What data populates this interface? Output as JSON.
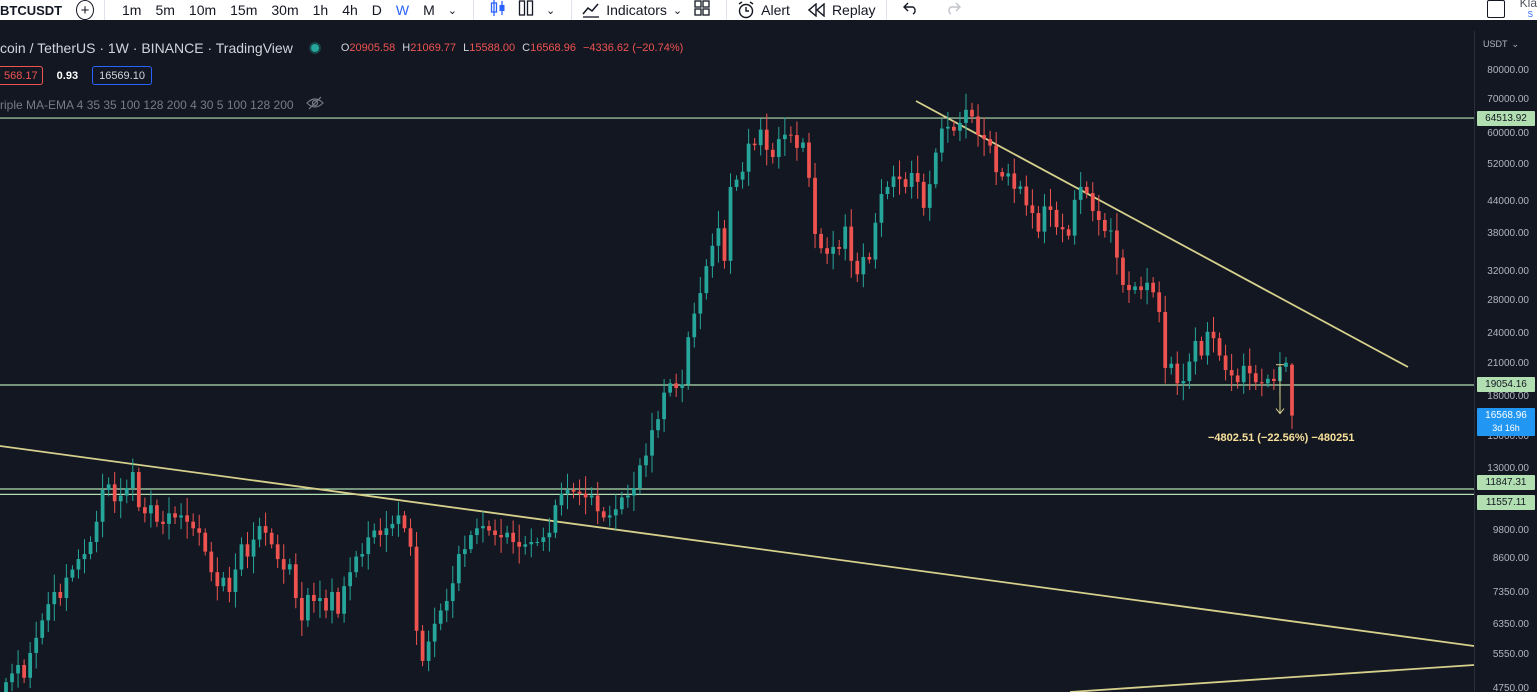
{
  "toolbar": {
    "symbol": "BTCUSDT",
    "add_symbol": "+",
    "timeframes": [
      "1m",
      "5m",
      "10m",
      "15m",
      "30m",
      "1h",
      "4h",
      "D",
      "W",
      "M"
    ],
    "active_timeframe": "W",
    "indicators_label": "Indicators",
    "alert_label": "Alert",
    "replay_label": "Replay",
    "corner_text": "Kla",
    "corner_sub": "S"
  },
  "legend": {
    "title": "coin / TetherUS · 1W · BINANCE · TradingView",
    "open_label": "O",
    "open": "20905.58",
    "high_label": "H",
    "high": "21069.77",
    "low_label": "L",
    "low": "15588.00",
    "close_label": "C",
    "close": "16568.96",
    "change": "−4336.62 (−20.74%)",
    "bid": "568.17",
    "spread": "0.93",
    "ask": "16569.10",
    "indicator": "riple MA-EMA 4 35 35 100 128 200 4 30 5 100 128 200"
  },
  "axis": {
    "currency": "USDT",
    "ticks": [
      "80000.00",
      "70000.00",
      "60000.00",
      "52000.00",
      "44000.00",
      "38000.00",
      "32000.00",
      "28000.00",
      "24000.00",
      "21000.00",
      "18000.00",
      "15000.00",
      "13000.00",
      "9800.00",
      "8600.00",
      "7350.00",
      "6350.00",
      "5550.00",
      "4750.00"
    ],
    "price_labels": [
      "64513.92",
      "19054.16",
      "11847.31",
      "11557.11"
    ],
    "current_price": "16568.96",
    "countdown": "3d 16h"
  },
  "measure": "−4802.51 (−22.56%) −480251",
  "colors": {
    "background": "#131722",
    "up": "#26a69a",
    "down": "#ef5350",
    "trendline": "#d6d08c",
    "hline": "#b2dfb2",
    "accent": "#2962ff"
  },
  "chart_data": {
    "type": "candlestick",
    "symbol": "BTCUSDT",
    "interval": "1W",
    "exchange": "BINANCE",
    "y_scale": "log",
    "ylim": [
      4750,
      80000
    ],
    "horizontal_levels": [
      64513.92,
      19054.16,
      11847.31,
      11557.11
    ],
    "last": {
      "open": 20905.58,
      "high": 21069.77,
      "low": 15588.0,
      "close": 16568.96
    },
    "closes": [
      4900,
      5100,
      5300,
      5000,
      5600,
      6000,
      6500,
      7000,
      7400,
      7200,
      7900,
      8200,
      8600,
      8800,
      9300,
      10200,
      11800,
      12100,
      11200,
      11500,
      11900,
      12800,
      10900,
      10600,
      11000,
      10200,
      10100,
      10600,
      10400,
      10500,
      10200,
      9900,
      9700,
      8900,
      8100,
      7600,
      7900,
      7400,
      8200,
      9200,
      8700,
      9400,
      10000,
      9700,
      9200,
      8600,
      8200,
      8400,
      7200,
      6500,
      7300,
      7100,
      7200,
      6800,
      7400,
      6700,
      7600,
      8100,
      8700,
      8800,
      9500,
      9800,
      9600,
      9900,
      10100,
      10500,
      9900,
      9100,
      6200,
      5400,
      5900,
      6400,
      6800,
      7100,
      7700,
      8800,
      9000,
      9600,
      9900,
      10000,
      9800,
      9600,
      9500,
      9700,
      9300,
      9100,
      9200,
      9300,
      9300,
      9500,
      9700,
      11000,
      11600,
      11800,
      11700,
      11600,
      11400,
      11500,
      10700,
      10400,
      10500,
      10800,
      11400,
      11500,
      11900,
      13200,
      13800,
      15500,
      16300,
      18400,
      19200,
      18800,
      19100,
      23700,
      26400,
      29000,
      32800,
      36000,
      39000,
      33600,
      47100,
      48700,
      50500,
      57400,
      57000,
      61200,
      55800,
      54000,
      58600,
      59800,
      59700,
      56300,
      57700,
      49100,
      38000,
      35600,
      34700,
      35800,
      35500,
      39300,
      33600,
      31600,
      34200,
      33800,
      40000,
      45600,
      47100,
      49400,
      48800,
      47100,
      50200,
      48200,
      42800,
      47700,
      55100,
      61500,
      62000,
      60900,
      63100,
      67000,
      65000,
      59700,
      58600,
      56900,
      50400,
      49400,
      50100,
      46700,
      47200,
      43300,
      41800,
      38400,
      43100,
      42400,
      39200,
      38800,
      37700,
      44400,
      47100,
      45800,
      42200,
      40500,
      38500,
      38600,
      34100,
      30100,
      29400,
      29900,
      29400,
      30400,
      29100,
      26600,
      20600,
      21000,
      19200,
      19400,
      21200,
      23300,
      21800,
      24300,
      23600,
      21800,
      20400,
      19900,
      19300,
      20800,
      20100,
      19300,
      19200,
      19600,
      19400,
      20700,
      21100,
      16569
    ]
  }
}
